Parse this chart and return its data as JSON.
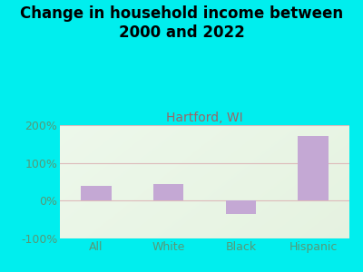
{
  "title": "Change in household income between\n2000 and 2022",
  "subtitle": "Hartford, WI",
  "categories": [
    "All",
    "White",
    "Black",
    "Hispanic"
  ],
  "values": [
    40,
    45,
    -35,
    170
  ],
  "bar_color": "#c4a8d4",
  "background_outer": "#00EEEE",
  "title_fontsize": 12,
  "title_fontweight": "bold",
  "subtitle_fontsize": 10,
  "subtitle_color": "#996666",
  "tick_label_fontsize": 9,
  "ytick_color": "#559977",
  "xtick_color": "#559977",
  "ylim": [
    -100,
    200
  ],
  "yticks": [
    -100,
    0,
    100,
    200
  ],
  "ytick_labels": [
    "-100%",
    "0%",
    "100%",
    "200%"
  ],
  "grid_color": "#ddbbbb",
  "plot_bg_color": "#eef5e8"
}
